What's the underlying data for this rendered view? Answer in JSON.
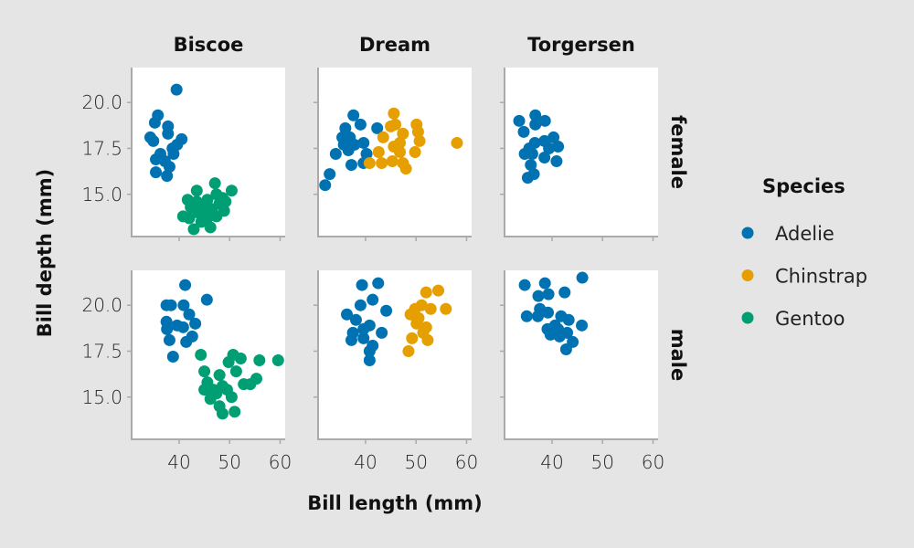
{
  "chart_data": {
    "type": "scatter",
    "xlabel": "Bill length (mm)",
    "ylabel": "Bill depth (mm)",
    "xlim": [
      30.6,
      61.0
    ],
    "ylim": [
      12.7,
      21.9
    ],
    "xticks": [
      40,
      50,
      60
    ],
    "xtick_labels": [
      "40",
      "50",
      "60"
    ],
    "yticks": [
      15.0,
      17.5,
      20.0
    ],
    "ytick_labels": [
      "15.0",
      "17.5",
      "20.0"
    ],
    "grid": false,
    "columns": [
      "Biscoe",
      "Dream",
      "Torgersen"
    ],
    "rows": [
      "female",
      "male"
    ],
    "legend": {
      "title": "Species",
      "placement": "right",
      "entries": [
        {
          "name": "Adelie",
          "color": "#0072B2"
        },
        {
          "name": "Chinstrap",
          "color": "#E69F00"
        },
        {
          "name": "Gentoo",
          "color": "#009E73"
        }
      ]
    },
    "panels": [
      {
        "column": "Biscoe",
        "row": "female",
        "points": {
          "Adelie": [
            [
              39.5,
              20.7
            ],
            [
              35.8,
              19.3
            ],
            [
              35.2,
              18.9
            ],
            [
              37.8,
              18.7
            ],
            [
              37.8,
              18.3
            ],
            [
              34.3,
              18.1
            ],
            [
              34.9,
              17.9
            ],
            [
              40.5,
              18.0
            ],
            [
              39.6,
              17.7
            ],
            [
              38.7,
              17.5
            ],
            [
              36.3,
              17.2
            ],
            [
              35.4,
              16.9
            ],
            [
              37.2,
              16.8
            ],
            [
              38.1,
              16.5
            ],
            [
              35.4,
              16.2
            ],
            [
              37.6,
              16.0
            ],
            [
              38.9,
              17.2
            ]
          ],
          "Gentoo": [
            [
              47.1,
              15.6
            ],
            [
              43.5,
              15.2
            ],
            [
              50.4,
              15.2
            ],
            [
              41.7,
              14.7
            ],
            [
              40.8,
              13.8
            ],
            [
              42.9,
              13.1
            ],
            [
              46.2,
              13.2
            ],
            [
              48.9,
              14.1
            ],
            [
              49.2,
              14.6
            ],
            [
              45.0,
              14.3
            ],
            [
              43.8,
              14.0
            ],
            [
              45.6,
              13.7
            ],
            [
              47.4,
              15.0
            ],
            [
              48.0,
              14.5
            ],
            [
              44.4,
              13.5
            ],
            [
              42.3,
              14.3
            ],
            [
              46.5,
              14.2
            ],
            [
              48.6,
              14.8
            ],
            [
              43.5,
              14.6
            ],
            [
              45.6,
              14.7
            ],
            [
              47.4,
              13.8
            ],
            [
              45.0,
              13.8
            ],
            [
              42.0,
              13.7
            ]
          ]
        }
      },
      {
        "column": "Dream",
        "row": "female",
        "points": {
          "Adelie": [
            [
              37.6,
              19.3
            ],
            [
              39.0,
              18.8
            ],
            [
              36.0,
              18.6
            ],
            [
              35.4,
              18.1
            ],
            [
              36.9,
              18.1
            ],
            [
              39.6,
              17.8
            ],
            [
              34.1,
              17.2
            ],
            [
              36.6,
              17.4
            ],
            [
              37.2,
              16.6
            ],
            [
              40.2,
              17.2
            ],
            [
              39.6,
              16.7
            ],
            [
              42.3,
              18.6
            ],
            [
              32.9,
              16.1
            ],
            [
              32.0,
              15.5
            ],
            [
              37.8,
              17.7
            ],
            [
              35.7,
              17.7
            ]
          ],
          "Chinstrap": [
            [
              45.6,
              19.4
            ],
            [
              45.9,
              18.8
            ],
            [
              45.0,
              18.7
            ],
            [
              47.4,
              18.3
            ],
            [
              50.1,
              18.8
            ],
            [
              50.4,
              18.4
            ],
            [
              50.7,
              17.9
            ],
            [
              43.5,
              18.1
            ],
            [
              46.8,
              17.8
            ],
            [
              49.8,
              17.3
            ],
            [
              42.6,
              17.3
            ],
            [
              46.8,
              17.3
            ],
            [
              45.3,
              16.8
            ],
            [
              47.4,
              16.7
            ],
            [
              48.0,
              16.4
            ],
            [
              40.8,
              16.7
            ],
            [
              43.2,
              16.7
            ],
            [
              58.1,
              17.8
            ],
            [
              45.6,
              17.6
            ]
          ]
        }
      },
      {
        "column": "Torgersen",
        "row": "female",
        "points": {
          "Adelie": [
            [
              33.5,
              19.0
            ],
            [
              36.7,
              19.3
            ],
            [
              38.6,
              19.0
            ],
            [
              36.7,
              18.8
            ],
            [
              34.4,
              18.4
            ],
            [
              36.6,
              17.8
            ],
            [
              38.5,
              17.9
            ],
            [
              40.3,
              18.1
            ],
            [
              41.2,
              17.6
            ],
            [
              35.5,
              17.5
            ],
            [
              34.6,
              17.2
            ],
            [
              36.1,
              17.2
            ],
            [
              38.5,
              17.0
            ],
            [
              40.9,
              16.8
            ],
            [
              35.8,
              16.6
            ],
            [
              36.4,
              16.1
            ],
            [
              35.2,
              15.9
            ],
            [
              39.4,
              17.5
            ]
          ]
        }
      },
      {
        "column": "Biscoe",
        "row": "male",
        "points": {
          "Adelie": [
            [
              41.2,
              21.1
            ],
            [
              45.5,
              20.3
            ],
            [
              37.5,
              20.0
            ],
            [
              38.4,
              20.0
            ],
            [
              40.9,
              20.0
            ],
            [
              42.0,
              19.5
            ],
            [
              37.5,
              19.1
            ],
            [
              43.2,
              19.0
            ],
            [
              39.6,
              18.9
            ],
            [
              37.6,
              18.7
            ],
            [
              40.8,
              18.8
            ],
            [
              42.6,
              18.3
            ],
            [
              38.1,
              18.1
            ],
            [
              41.4,
              18.0
            ],
            [
              38.8,
              17.2
            ]
          ],
          "Gentoo": [
            [
              44.3,
              17.3
            ],
            [
              50.7,
              17.3
            ],
            [
              52.2,
              17.1
            ],
            [
              55.9,
              17.0
            ],
            [
              59.6,
              17.0
            ],
            [
              49.8,
              16.9
            ],
            [
              45.0,
              16.4
            ],
            [
              51.3,
              16.4
            ],
            [
              48.0,
              16.2
            ],
            [
              55.3,
              16.0
            ],
            [
              54.1,
              15.7
            ],
            [
              45.6,
              15.8
            ],
            [
              45.0,
              15.4
            ],
            [
              48.6,
              15.6
            ],
            [
              47.4,
              15.2
            ],
            [
              50.4,
              15.0
            ],
            [
              46.2,
              14.9
            ],
            [
              48.0,
              14.5
            ],
            [
              51.0,
              14.2
            ],
            [
              48.6,
              14.1
            ],
            [
              52.8,
              15.7
            ],
            [
              46.8,
              15.4
            ],
            [
              49.5,
              15.4
            ]
          ]
        }
      },
      {
        "column": "Dream",
        "row": "male",
        "points": {
          "Adelie": [
            [
              39.3,
              21.1
            ],
            [
              42.5,
              21.2
            ],
            [
              41.4,
              20.3
            ],
            [
              39.0,
              20.0
            ],
            [
              36.3,
              19.5
            ],
            [
              44.1,
              19.7
            ],
            [
              38.1,
              19.2
            ],
            [
              40.8,
              18.9
            ],
            [
              39.6,
              18.7
            ],
            [
              37.5,
              18.5
            ],
            [
              43.2,
              18.5
            ],
            [
              37.2,
              18.1
            ],
            [
              39.6,
              18.2
            ],
            [
              40.8,
              17.5
            ],
            [
              40.8,
              17.0
            ],
            [
              41.4,
              17.8
            ]
          ],
          "Chinstrap": [
            [
              54.4,
              20.8
            ],
            [
              52.0,
              20.7
            ],
            [
              55.9,
              19.8
            ],
            [
              49.8,
              19.8
            ],
            [
              48.9,
              19.5
            ],
            [
              51.1,
              20.0
            ],
            [
              52.9,
              19.8
            ],
            [
              50.1,
              19.0
            ],
            [
              52.0,
              18.8
            ],
            [
              49.2,
              18.2
            ],
            [
              52.3,
              18.1
            ],
            [
              48.5,
              17.5
            ],
            [
              50.5,
              19.3
            ],
            [
              51.4,
              18.5
            ]
          ]
        }
      },
      {
        "column": "Torgersen",
        "row": "male",
        "points": {
          "Adelie": [
            [
              46.0,
              21.5
            ],
            [
              34.6,
              21.1
            ],
            [
              38.6,
              21.2
            ],
            [
              37.3,
              20.5
            ],
            [
              39.3,
              20.6
            ],
            [
              42.5,
              20.7
            ],
            [
              37.6,
              19.8
            ],
            [
              35.0,
              19.4
            ],
            [
              37.2,
              19.4
            ],
            [
              39.2,
              19.6
            ],
            [
              41.8,
              19.4
            ],
            [
              43.3,
              19.2
            ],
            [
              45.9,
              18.9
            ],
            [
              39.1,
              18.7
            ],
            [
              40.6,
              18.9
            ],
            [
              39.7,
              18.4
            ],
            [
              41.5,
              18.3
            ],
            [
              43.0,
              18.5
            ],
            [
              44.1,
              18.0
            ],
            [
              42.8,
              17.6
            ],
            [
              41.2,
              18.7
            ]
          ]
        }
      }
    ]
  }
}
